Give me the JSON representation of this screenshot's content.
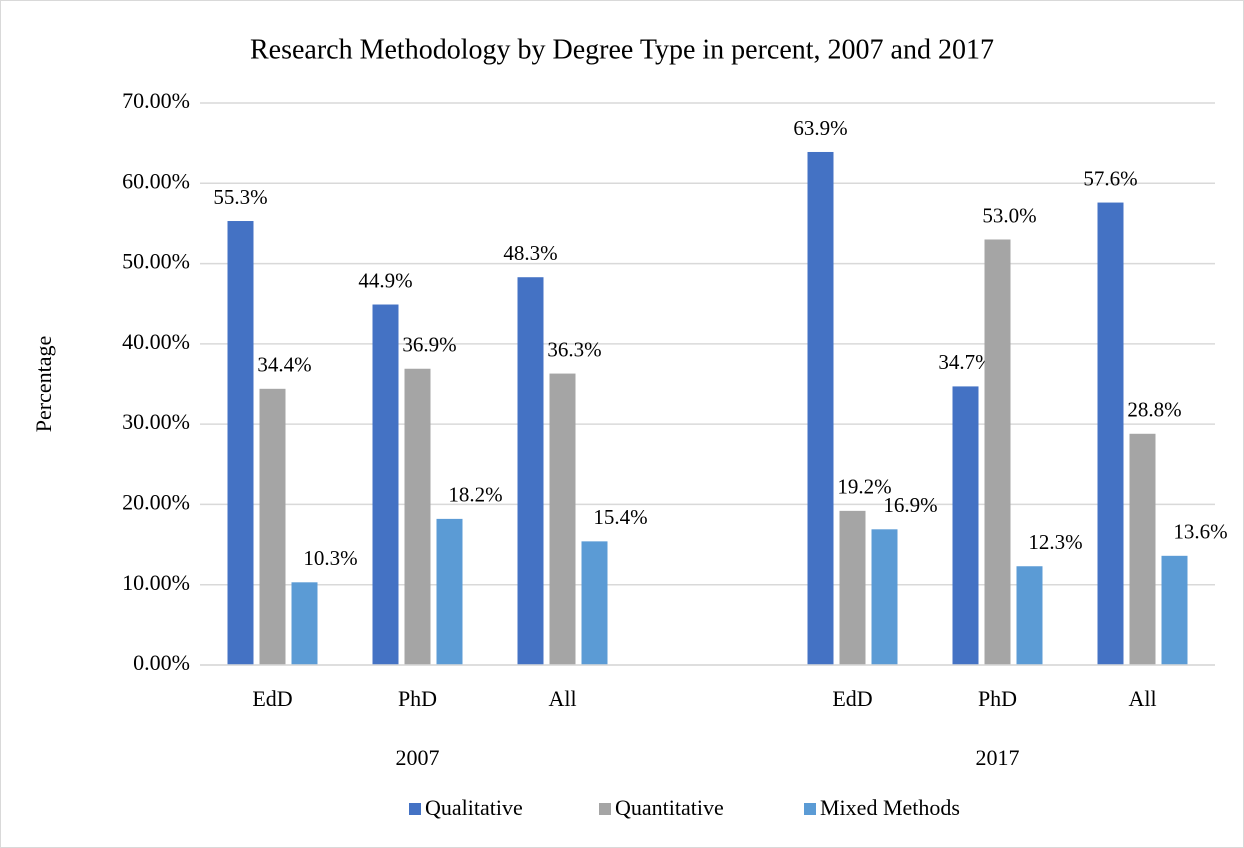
{
  "chart_data": {
    "type": "bar",
    "title": "Research Methodology by Degree Type in percent, 2007 and 2017",
    "y_label": "Percentage",
    "categories": [
      "EdD",
      "PhD",
      "All",
      null,
      "EdD",
      "PhD",
      "All"
    ],
    "category_groups": [
      "2007",
      "2017"
    ],
    "series": [
      {
        "name": "Qualitative",
        "color": "#4472c4",
        "values": [
          55.3,
          44.9,
          48.3,
          null,
          63.9,
          34.7,
          57.6
        ],
        "value_labels": [
          "55.3%",
          "44.9%",
          "48.3%",
          null,
          "63.9%",
          "34.7%",
          "57.6%"
        ]
      },
      {
        "name": "Quantitative",
        "color": "#a5a5a5",
        "values": [
          34.4,
          36.9,
          36.3,
          null,
          19.2,
          53.0,
          28.8
        ],
        "value_labels": [
          "34.4%",
          "36.9%",
          "36.3%",
          null,
          "19.2%",
          "53.0%",
          "28.8%"
        ]
      },
      {
        "name": "Mixed Methods",
        "color": "#5b9bd5",
        "values": [
          10.3,
          18.2,
          15.4,
          null,
          16.9,
          12.3,
          13.6
        ],
        "value_labels": [
          "10.3%",
          "18.2%",
          "15.4%",
          null,
          "16.9%",
          "12.3%",
          "13.6%"
        ]
      }
    ],
    "ylim": [
      0,
      70
    ],
    "yticks": [
      {
        "value": 0,
        "label": "0.00%"
      },
      {
        "value": 10,
        "label": "10.00%"
      },
      {
        "value": 20,
        "label": "20.00%"
      },
      {
        "value": 30,
        "label": "30.00%"
      },
      {
        "value": 40,
        "label": "40.00%"
      },
      {
        "value": 50,
        "label": "50.00%"
      },
      {
        "value": 60,
        "label": "60.00%"
      },
      {
        "value": 70,
        "label": "70.00%"
      }
    ],
    "grid": true,
    "legend": "bottom"
  }
}
